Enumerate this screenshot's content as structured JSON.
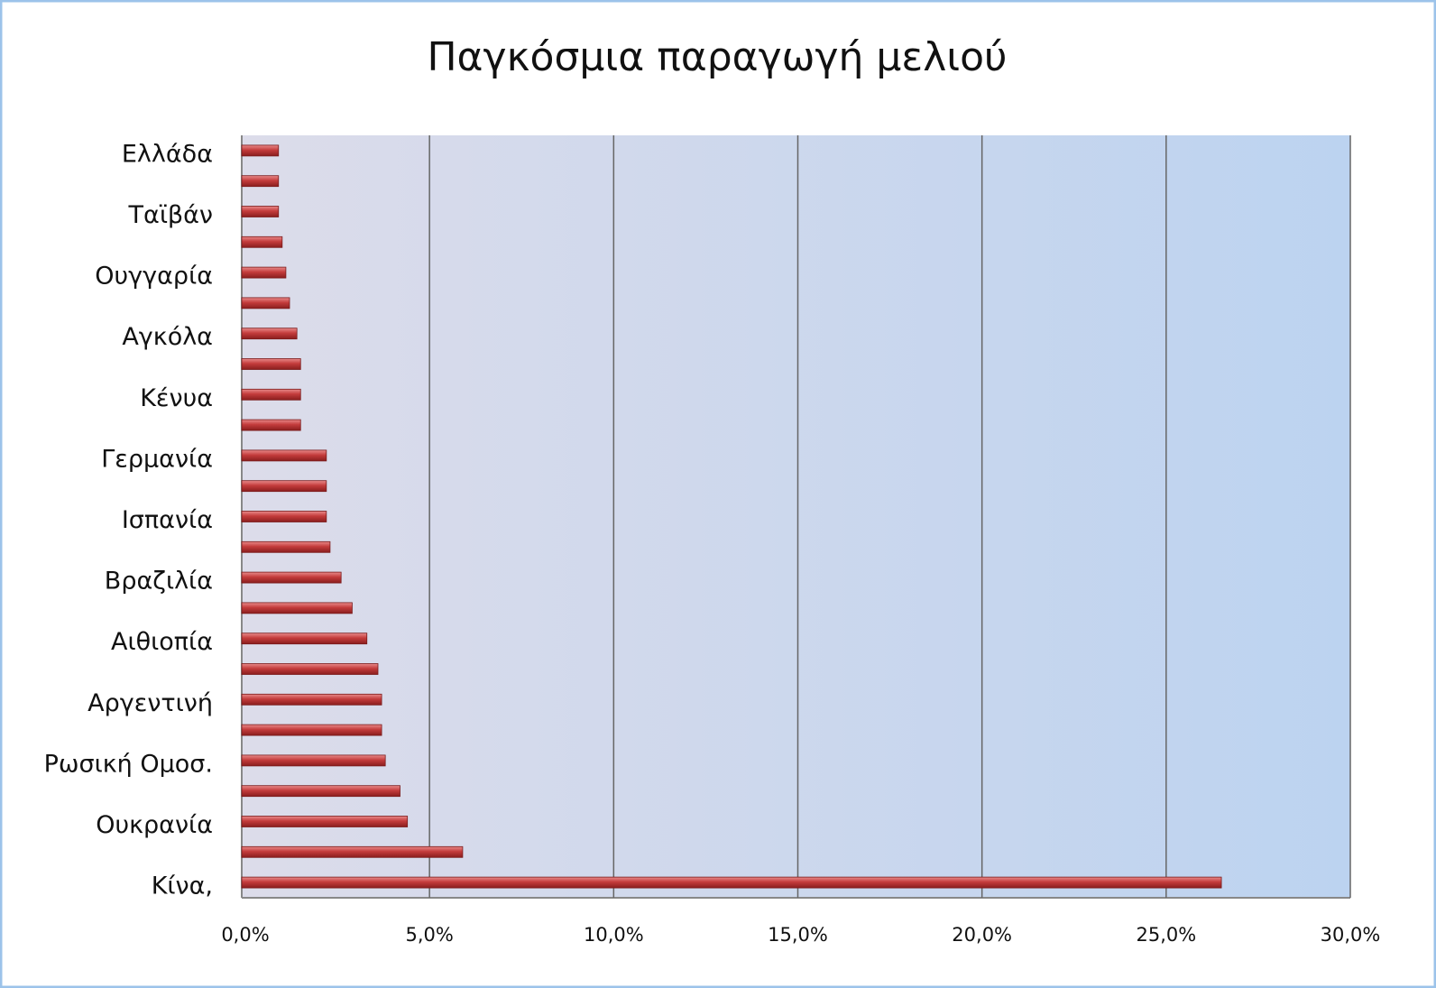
{
  "chart_data": {
    "type": "hbar",
    "title": "Παγκόσμια παραγωγή μελιού",
    "categories": [
      "Ελλάδα",
      null,
      "Ταϊβάν",
      null,
      "Ουγγαρία",
      null,
      "Αγκόλα",
      null,
      "Κένυα",
      null,
      "Γερμανία",
      null,
      "Ισπανία",
      null,
      "Βραζιλία",
      null,
      "Αιθιοπία",
      null,
      "Αργεντινή",
      null,
      "Ρωσική Ομοσ.",
      null,
      "Ουκρανία",
      null,
      "Κίνα,"
    ],
    "values": [
      0.9,
      0.9,
      0.9,
      1.0,
      1.1,
      1.2,
      1.4,
      1.5,
      1.5,
      1.5,
      2.2,
      2.2,
      2.2,
      2.3,
      2.6,
      2.9,
      3.3,
      3.6,
      3.7,
      3.7,
      3.8,
      4.2,
      4.4,
      5.9,
      26.5
    ],
    "color": "#c43c3c",
    "xlim": [
      0,
      30
    ],
    "xticks": [
      {
        "value": 0,
        "label": "0,0%"
      },
      {
        "value": 5,
        "label": "5,0%"
      },
      {
        "value": 10,
        "label": "10,0%"
      },
      {
        "value": 15,
        "label": "15,0%"
      },
      {
        "value": 20,
        "label": "20,0%"
      },
      {
        "value": 25,
        "label": "25,0%"
      },
      {
        "value": 30,
        "label": "30,0%"
      }
    ],
    "grid": true
  }
}
